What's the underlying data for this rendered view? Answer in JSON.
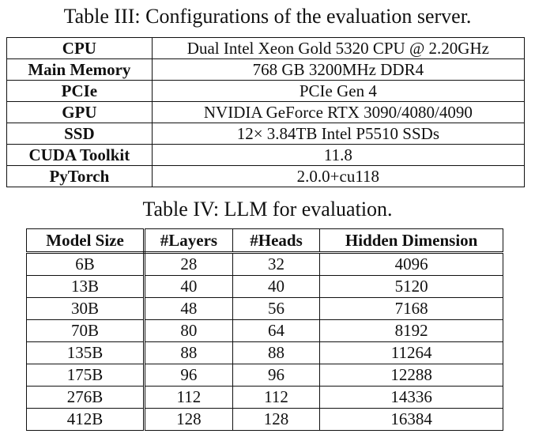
{
  "table3": {
    "caption": "Table III: Configurations of the evaluation server.",
    "rows": [
      {
        "key": "CPU",
        "value": "Dual Intel Xeon Gold 5320 CPU @ 2.20GHz"
      },
      {
        "key": "Main Memory",
        "value": "768 GB 3200MHz DDR4"
      },
      {
        "key": "PCIe",
        "value": "PCIe Gen 4"
      },
      {
        "key": "GPU",
        "value": "NVIDIA GeForce RTX 3090/4080/4090"
      },
      {
        "key": "SSD",
        "value": "12× 3.84TB Intel P5510 SSDs"
      },
      {
        "key": "CUDA Toolkit",
        "value": "11.8"
      },
      {
        "key": "PyTorch",
        "value": "2.0.0+cu118"
      }
    ]
  },
  "table4": {
    "caption": "Table IV: LLM for evaluation.",
    "headers": [
      "Model Size",
      "#Layers",
      "#Heads",
      "Hidden Dimension"
    ],
    "rows": [
      [
        "6B",
        "28",
        "32",
        "4096"
      ],
      [
        "13B",
        "40",
        "40",
        "5120"
      ],
      [
        "30B",
        "48",
        "56",
        "7168"
      ],
      [
        "70B",
        "80",
        "64",
        "8192"
      ],
      [
        "135B",
        "88",
        "88",
        "11264"
      ],
      [
        "175B",
        "96",
        "96",
        "12288"
      ],
      [
        "276B",
        "112",
        "112",
        "14336"
      ],
      [
        "412B",
        "128",
        "128",
        "16384"
      ]
    ]
  }
}
